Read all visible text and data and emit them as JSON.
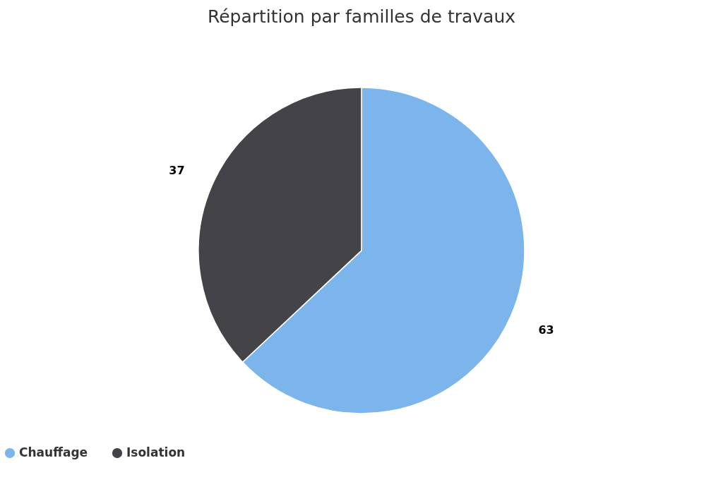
{
  "chart_data": {
    "type": "pie",
    "title": "Répartition par familles de travaux",
    "categories": [
      "Chauffage",
      "Isolation"
    ],
    "values": [
      63,
      37
    ],
    "colors": [
      "#7cb5ec",
      "#434348"
    ],
    "data_labels": true,
    "legend": "bottom"
  }
}
